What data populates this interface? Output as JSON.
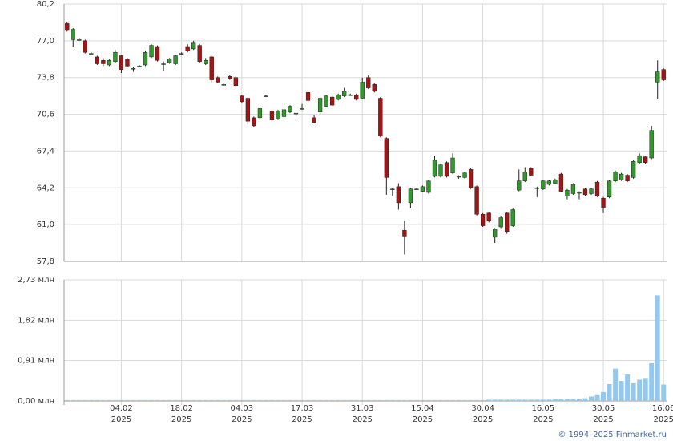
{
  "chart_data": {
    "type": "candlestick",
    "categories": [
      null,
      null,
      null,
      null,
      null,
      null,
      null,
      null,
      null,
      [
        "04.02",
        "2025"
      ],
      null,
      null,
      null,
      null,
      null,
      null,
      null,
      null,
      null,
      [
        "18.02",
        "2025"
      ],
      null,
      null,
      null,
      null,
      null,
      null,
      null,
      null,
      null,
      [
        "04.03",
        "2025"
      ],
      null,
      null,
      null,
      null,
      null,
      null,
      null,
      null,
      null,
      [
        "17.03",
        "2025"
      ],
      null,
      null,
      null,
      null,
      null,
      null,
      null,
      null,
      null,
      [
        "31.03",
        "2025"
      ],
      null,
      null,
      null,
      null,
      null,
      null,
      null,
      null,
      null,
      [
        "15.04",
        "2025"
      ],
      null,
      null,
      null,
      null,
      null,
      null,
      null,
      null,
      null,
      [
        "30.04",
        "2025"
      ],
      null,
      null,
      null,
      null,
      null,
      null,
      null,
      null,
      null,
      [
        "16.05",
        "2025"
      ],
      null,
      null,
      null,
      null,
      null,
      null,
      null,
      null,
      null,
      [
        "30.05",
        "2025"
      ],
      null,
      null,
      null,
      null,
      null,
      null,
      null,
      null,
      null,
      [
        "16.06",
        "2025"
      ]
    ],
    "open": [
      78.5,
      77.1,
      77.1,
      77.0,
      75.9,
      75.6,
      75.3,
      74.9,
      75.2,
      75.7,
      75.4,
      74.6,
      74.8,
      74.9,
      75.6,
      76.5,
      75.0,
      75.1,
      75.0,
      75.9,
      76.5,
      76.3,
      76.6,
      75.0,
      75.6,
      73.8,
      73.2,
      73.9,
      73.8,
      72.2,
      72.0,
      70.3,
      70.3,
      72.2,
      70.9,
      70.2,
      70.4,
      70.8,
      70.7,
      71.1,
      72.5,
      70.3,
      70.8,
      71.3,
      72.1,
      71.9,
      72.2,
      72.3,
      72.3,
      72.0,
      73.8,
      73.2,
      72.0,
      68.5,
      64.1,
      64.3,
      60.5,
      62.9,
      64.1,
      63.9,
      63.8,
      65.2,
      65.2,
      66.4,
      65.5,
      65.2,
      65.1,
      65.8,
      64.3,
      61.9,
      62.0,
      59.9,
      60.8,
      62.0,
      60.9,
      64.0,
      64.8,
      65.9,
      64.2,
      64.1,
      64.5,
      64.6,
      65.4,
      63.5,
      63.7,
      63.8,
      64.1,
      63.7,
      64.7,
      63.3,
      63.4,
      64.8,
      64.9,
      65.3,
      65.1,
      66.4,
      66.9,
      66.8,
      73.4,
      74.5
    ],
    "high": [
      78.6,
      78.1,
      77.2,
      77.1,
      76.0,
      75.7,
      75.5,
      75.4,
      76.2,
      75.8,
      75.5,
      74.7,
      74.9,
      76.1,
      76.7,
      76.6,
      75.2,
      75.5,
      75.8,
      76.0,
      76.7,
      77.0,
      76.7,
      75.5,
      75.7,
      73.9,
      73.3,
      74.0,
      73.9,
      72.3,
      72.1,
      70.4,
      71.2,
      72.3,
      71.0,
      71.0,
      71.1,
      71.4,
      70.8,
      71.5,
      72.6,
      70.5,
      72.1,
      72.3,
      72.2,
      72.4,
      72.9,
      72.4,
      72.4,
      73.8,
      74.0,
      73.3,
      72.1,
      68.6,
      64.2,
      64.6,
      61.3,
      64.2,
      64.2,
      64.4,
      64.9,
      67.0,
      66.3,
      66.5,
      67.2,
      65.3,
      65.6,
      65.9,
      64.4,
      62.0,
      62.1,
      60.7,
      61.7,
      62.1,
      62.4,
      65.8,
      66.0,
      66.0,
      64.3,
      64.9,
      64.9,
      65.0,
      65.5,
      64.1,
      64.6,
      63.9,
      64.2,
      64.2,
      64.8,
      63.4,
      64.9,
      65.7,
      65.5,
      65.4,
      66.6,
      67.2,
      67.0,
      69.6,
      75.3,
      74.6
    ],
    "low": [
      77.8,
      76.5,
      77.0,
      75.9,
      75.8,
      74.9,
      74.8,
      74.8,
      75.1,
      74.2,
      74.7,
      74.3,
      74.7,
      74.8,
      75.5,
      75.2,
      74.4,
      75.0,
      74.9,
      75.8,
      76.0,
      76.2,
      75.1,
      74.9,
      73.4,
      73.3,
      73.1,
      73.6,
      73.0,
      71.6,
      69.7,
      69.5,
      70.2,
      72.1,
      70.0,
      70.1,
      70.3,
      70.7,
      70.4,
      71.0,
      71.7,
      69.8,
      70.6,
      71.2,
      71.3,
      71.8,
      72.1,
      72.2,
      71.8,
      71.9,
      72.8,
      72.5,
      68.6,
      63.6,
      63.5,
      62.3,
      58.4,
      62.4,
      64.0,
      63.8,
      63.7,
      65.1,
      65.1,
      65.1,
      65.4,
      65.0,
      65.0,
      64.1,
      61.8,
      60.8,
      61.2,
      59.4,
      60.7,
      60.2,
      60.8,
      63.9,
      64.7,
      65.2,
      63.4,
      64.0,
      64.4,
      64.5,
      63.8,
      63.2,
      63.6,
      63.2,
      63.5,
      63.6,
      63.4,
      62.0,
      63.3,
      64.7,
      64.8,
      64.7,
      65.0,
      66.3,
      66.3,
      66.7,
      71.9,
      73.5
    ],
    "close": [
      77.9,
      78.0,
      77.1,
      76.0,
      75.9,
      75.0,
      75.0,
      75.3,
      76.0,
      74.5,
      74.8,
      74.6,
      74.8,
      76.0,
      76.6,
      75.3,
      75.0,
      75.4,
      75.7,
      75.9,
      76.1,
      76.8,
      75.2,
      75.3,
      73.6,
      73.4,
      73.2,
      73.7,
      73.1,
      71.7,
      70.0,
      69.6,
      71.1,
      72.2,
      70.1,
      70.9,
      71.0,
      71.3,
      70.7,
      71.1,
      71.8,
      69.9,
      72.0,
      72.2,
      71.4,
      72.3,
      72.6,
      72.3,
      71.9,
      73.4,
      72.9,
      72.6,
      68.7,
      65.1,
      64.1,
      62.9,
      60.0,
      64.1,
      64.1,
      64.3,
      64.8,
      66.6,
      66.2,
      65.2,
      66.8,
      65.2,
      65.5,
      64.2,
      61.9,
      60.9,
      61.3,
      60.6,
      61.6,
      60.4,
      62.3,
      64.8,
      65.6,
      65.3,
      64.2,
      64.8,
      64.8,
      64.9,
      63.9,
      64.0,
      64.5,
      63.8,
      63.6,
      64.1,
      63.5,
      62.5,
      64.8,
      65.6,
      65.4,
      64.8,
      66.5,
      67.0,
      66.4,
      69.2,
      74.3,
      73.6
    ],
    "volume": [
      0.02,
      0.02,
      0.02,
      0.02,
      0.02,
      0.02,
      0.02,
      0.02,
      0.02,
      0.02,
      0.02,
      0.02,
      0.02,
      0.02,
      0.02,
      0.02,
      0.02,
      0.02,
      0.02,
      0.02,
      0.02,
      0.02,
      0.02,
      0.02,
      0.02,
      0.02,
      0.02,
      0.02,
      0.02,
      0.02,
      0.02,
      0.02,
      0.02,
      0.02,
      0.02,
      0.02,
      0.02,
      0.02,
      0.02,
      0.02,
      0.02,
      0.02,
      0.02,
      0.02,
      0.02,
      0.02,
      0.02,
      0.02,
      0.02,
      0.02,
      0.02,
      0.02,
      0.02,
      0.02,
      0.02,
      0.02,
      0.02,
      0.02,
      0.02,
      0.02,
      0.02,
      0.02,
      0.02,
      0.02,
      0.02,
      0.02,
      0.02,
      0.02,
      0.02,
      0.02,
      0.03,
      0.03,
      0.03,
      0.03,
      0.03,
      0.03,
      0.03,
      0.03,
      0.03,
      0.03,
      0.03,
      0.04,
      0.04,
      0.04,
      0.04,
      0.04,
      0.06,
      0.1,
      0.13,
      0.2,
      0.38,
      0.73,
      0.45,
      0.6,
      0.4,
      0.48,
      0.5,
      0.85,
      2.38,
      0.37
    ],
    "up_color": "#2f9a2a",
    "down_color": "#a51414",
    "volume_color": "#94c9ef",
    "ylim": [
      57.8,
      80.2
    ],
    "yticks": [
      {
        "value": 57.8,
        "label": "57,8"
      },
      {
        "value": 61.0,
        "label": "61,0"
      },
      {
        "value": 64.2,
        "label": "64,2"
      },
      {
        "value": 67.4,
        "label": "67,4"
      },
      {
        "value": 70.6,
        "label": "70,6"
      },
      {
        "value": 73.8,
        "label": "73,8"
      },
      {
        "value": 77.0,
        "label": "77,0"
      },
      {
        "value": 80.2,
        "label": "80,2"
      }
    ],
    "y2lim": [
      0,
      2.73
    ],
    "y2ticks": [
      {
        "value": 0,
        "label": "0,00 млн"
      },
      {
        "value": 0.91,
        "label": "0,91 млн"
      },
      {
        "value": 1.82,
        "label": "1,82 млн"
      },
      {
        "value": 2.73,
        "label": "2,73 млн"
      }
    ],
    "grid": true,
    "source": "© 1994–2025 Finmarket.ru"
  }
}
